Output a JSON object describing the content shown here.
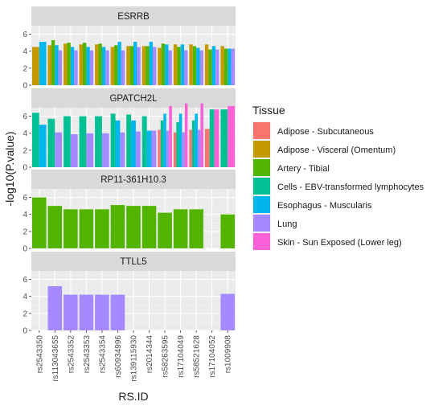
{
  "chart_data": {
    "type": "bar",
    "layout": "faceted-dodged-bar",
    "xlabel": "RS.ID",
    "ylabel": "-log10(P.value)",
    "ylim": [
      0,
      7
    ],
    "yticks": [
      0,
      2,
      4,
      6
    ],
    "grid": true,
    "legend_position": "right",
    "legend_title": "Tissue",
    "categories": [
      "rs2543350",
      "rs113043655",
      "rs2543352",
      "rs2543353",
      "rs2543354",
      "rs60934996",
      "rs139115930",
      "rs2014344",
      "rs58263595",
      "rs17104049",
      "rs58521628",
      "rs17104052",
      "rs1009908"
    ],
    "tissues": [
      {
        "name": "Adipose - Subcutaneous",
        "color": "#F8766D"
      },
      {
        "name": "Adipose - Visceral (Omentum)",
        "color": "#C49A00"
      },
      {
        "name": "Artery - Tibial",
        "color": "#53B400"
      },
      {
        "name": "Cells - EBV-transformed lymphocytes",
        "color": "#00C094"
      },
      {
        "name": "Esophagus - Muscularis",
        "color": "#00B6EB"
      },
      {
        "name": "Lung",
        "color": "#A58AFF"
      },
      {
        "name": "Skin - Sun Exposed (Lower leg)",
        "color": "#FB61D7"
      }
    ],
    "panels": [
      {
        "gene": "ESRRB",
        "values": [
          [
            null,
            4.5,
            null,
            null,
            5.1,
            null,
            null
          ],
          [
            null,
            4.7,
            5.3,
            null,
            4.7,
            4.1,
            null
          ],
          [
            null,
            4.9,
            5.0,
            null,
            4.5,
            4.1,
            null
          ],
          [
            null,
            4.8,
            5.0,
            null,
            4.5,
            4.1,
            null
          ],
          [
            null,
            4.8,
            4.9,
            null,
            4.5,
            4.1,
            null
          ],
          [
            null,
            4.5,
            4.7,
            null,
            5.1,
            4.1,
            null
          ],
          [
            null,
            4.6,
            4.6,
            null,
            5.1,
            4.5,
            null
          ],
          [
            null,
            4.6,
            4.6,
            null,
            5.1,
            4.5,
            null
          ],
          [
            null,
            4.4,
            4.9,
            null,
            4.8,
            4.1,
            null
          ],
          [
            null,
            4.8,
            4.5,
            null,
            4.8,
            4.1,
            null
          ],
          [
            null,
            4.8,
            4.6,
            null,
            4.4,
            4.1,
            null
          ],
          [
            null,
            4.8,
            4.2,
            null,
            4.6,
            4.2,
            null
          ],
          [
            null,
            4.6,
            4.3,
            null,
            4.3,
            4.3,
            null
          ]
        ]
      },
      {
        "gene": "GPATCH2L",
        "values": [
          [
            null,
            null,
            null,
            6.4,
            5.0,
            null,
            null
          ],
          [
            null,
            null,
            null,
            5.7,
            null,
            4.1,
            null
          ],
          [
            null,
            null,
            null,
            6.0,
            null,
            3.9,
            null
          ],
          [
            null,
            null,
            null,
            6.0,
            null,
            4.0,
            null
          ],
          [
            null,
            null,
            null,
            6.0,
            null,
            4.0,
            null
          ],
          [
            null,
            null,
            null,
            6.3,
            5.5,
            4.1,
            null
          ],
          [
            null,
            null,
            null,
            6.2,
            5.5,
            4.2,
            null
          ],
          [
            null,
            null,
            null,
            6.0,
            4.3,
            4.3,
            null
          ],
          [
            4.4,
            null,
            null,
            5.5,
            6.3,
            4.3,
            7.2
          ],
          [
            4.1,
            null,
            null,
            5.3,
            6.3,
            4.1,
            7.5
          ],
          [
            4.4,
            null,
            null,
            5.5,
            6.3,
            4.4,
            7.5
          ],
          [
            4.5,
            null,
            null,
            6.8,
            null,
            null,
            6.8
          ],
          [
            null,
            null,
            null,
            6.8,
            null,
            null,
            7.2
          ]
        ]
      },
      {
        "gene": "RP11-361H10.3",
        "values": [
          [
            null,
            null,
            6.0,
            null,
            null,
            null,
            null
          ],
          [
            null,
            null,
            5.0,
            null,
            null,
            null,
            null
          ],
          [
            null,
            null,
            4.6,
            null,
            null,
            null,
            null
          ],
          [
            null,
            null,
            4.6,
            null,
            null,
            null,
            null
          ],
          [
            null,
            null,
            4.6,
            null,
            null,
            null,
            null
          ],
          [
            null,
            null,
            5.1,
            null,
            null,
            null,
            null
          ],
          [
            null,
            null,
            5.0,
            null,
            null,
            null,
            null
          ],
          [
            null,
            null,
            5.0,
            null,
            null,
            null,
            null
          ],
          [
            null,
            null,
            4.2,
            null,
            null,
            null,
            null
          ],
          [
            null,
            null,
            4.6,
            null,
            null,
            null,
            null
          ],
          [
            null,
            null,
            4.6,
            null,
            null,
            null,
            null
          ],
          [
            null,
            null,
            null,
            null,
            null,
            null,
            null
          ],
          [
            null,
            null,
            4.0,
            null,
            null,
            null,
            null
          ]
        ]
      },
      {
        "gene": "TTLL5",
        "values": [
          [
            null,
            null,
            null,
            null,
            null,
            null,
            null
          ],
          [
            null,
            null,
            null,
            null,
            null,
            5.2,
            null
          ],
          [
            null,
            null,
            null,
            null,
            null,
            4.2,
            null
          ],
          [
            null,
            null,
            null,
            null,
            null,
            4.2,
            null
          ],
          [
            null,
            null,
            null,
            null,
            null,
            4.2,
            null
          ],
          [
            null,
            null,
            null,
            null,
            null,
            4.2,
            null
          ],
          [
            null,
            null,
            null,
            null,
            null,
            null,
            null
          ],
          [
            null,
            null,
            null,
            null,
            null,
            null,
            null
          ],
          [
            null,
            null,
            null,
            null,
            null,
            null,
            null
          ],
          [
            null,
            null,
            null,
            null,
            null,
            null,
            null
          ],
          [
            null,
            null,
            null,
            null,
            null,
            null,
            null
          ],
          [
            null,
            null,
            null,
            null,
            null,
            null,
            null
          ],
          [
            null,
            null,
            null,
            null,
            null,
            4.3,
            null
          ]
        ]
      }
    ]
  }
}
